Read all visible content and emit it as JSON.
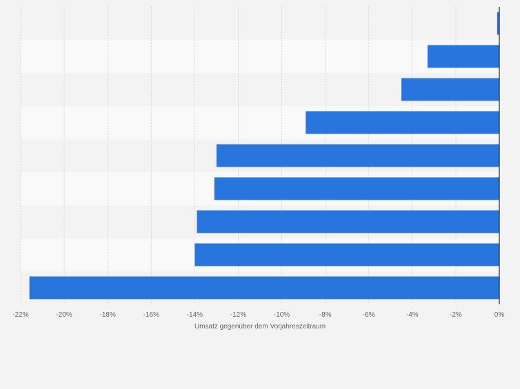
{
  "chart_data": {
    "type": "bar",
    "orientation": "horizontal",
    "categories": [
      "",
      "",
      "",
      "",
      "",
      "",
      "",
      "",
      ""
    ],
    "values": [
      -0.1,
      -3.3,
      -4.5,
      -8.9,
      -13.0,
      -13.1,
      -13.9,
      -14.0,
      -21.6
    ],
    "xlabel": "Umsatz gegenüber dem Vorjahreszeitraum",
    "ylabel": "",
    "xlim": [
      -22,
      0
    ],
    "x_ticks": [
      -22,
      -20,
      -18,
      -16,
      -14,
      -12,
      -10,
      -8,
      -6,
      -4,
      -2,
      0
    ],
    "x_tick_labels": [
      "-22%",
      "-20%",
      "-18%",
      "-16%",
      "-14%",
      "-12%",
      "-10%",
      "-8%",
      "-6%",
      "-4%",
      "-2%",
      "0%"
    ],
    "grid": true,
    "legend": "none",
    "colors": {
      "bar": "#2876dd",
      "band_light": "#f9f9f9",
      "band_dark": "#f3f3f3",
      "grid": "#d6d6d6",
      "zero_line": "#222222",
      "label": "#666666"
    }
  }
}
